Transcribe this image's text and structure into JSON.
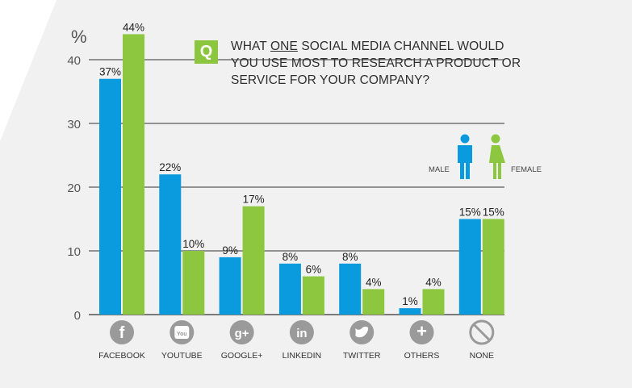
{
  "question": {
    "badge": "Q",
    "line1_prefix": "WHAT ",
    "line1_emph": "ONE",
    "line1_suffix": " SOCIAL MEDIA CHANNEL WOULD",
    "line2": "YOU USE MOST TO RESEARCH A PRODUCT OR",
    "line3": "SERVICE FOR YOUR COMPANY?"
  },
  "legend": {
    "male": "MALE",
    "female": "FEMALE"
  },
  "colors": {
    "male": "#0a9ade",
    "female": "#8dc63f",
    "gridline": "#333333",
    "icon": "#9a9a9a",
    "background": "#f1f1f1"
  },
  "chart_data": {
    "type": "bar",
    "categories": [
      "FACEBOOK",
      "YOUTUBE",
      "GOOGLE+",
      "LINKEDIN",
      "TWITTER",
      "OTHERS",
      "NONE"
    ],
    "icons": [
      "facebook-icon",
      "youtube-icon",
      "google-plus-icon",
      "linkedin-icon",
      "twitter-icon",
      "plus-icon",
      "none-icon"
    ],
    "series": [
      {
        "name": "MALE",
        "values": [
          37,
          22,
          9,
          8,
          8,
          1,
          15
        ],
        "labels": [
          "37%",
          "22%",
          "9%",
          "8%",
          "8%",
          "1%",
          "15%"
        ]
      },
      {
        "name": "FEMALE",
        "values": [
          44,
          10,
          17,
          6,
          4,
          4,
          15
        ],
        "labels": [
          "44%",
          "10%",
          "17%",
          "6%",
          "4%",
          "4%",
          "15%"
        ]
      }
    ],
    "ylabel": "%",
    "yticks": [
      "0",
      "10",
      "20",
      "30",
      "40"
    ],
    "ylim": [
      0,
      50
    ],
    "grid": true
  }
}
